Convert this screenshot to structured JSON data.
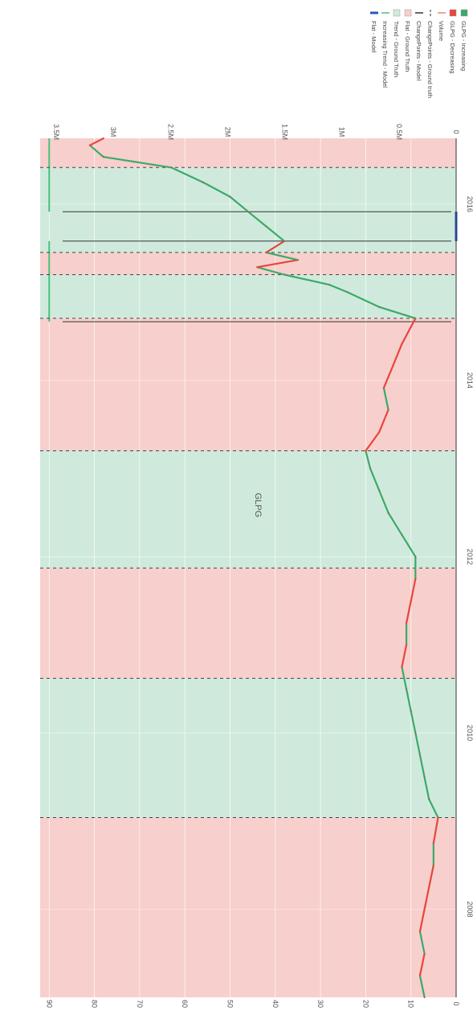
{
  "chart_data": {
    "type": "line",
    "title": "GLPG",
    "orientation": "rotated-90-clockwise",
    "x_axis": {
      "kind": "date",
      "ticks": [
        "2008",
        "2010",
        "2012",
        "2014",
        "2016"
      ],
      "range": [
        "2007-01-01",
        "2016-09-30"
      ]
    },
    "y_axis_left": {
      "ticks": [
        "0",
        "10",
        "20",
        "30",
        "40",
        "50",
        "60",
        "70",
        "80",
        "90"
      ],
      "range": [
        0,
        92
      ]
    },
    "y_axis_right": {
      "label": "Volume",
      "ticks": [
        "0",
        "0.5M",
        "1M",
        "1.5M",
        "2M",
        "2.5M",
        "3M",
        "3.5M"
      ],
      "range": [
        0,
        3500000
      ]
    },
    "grid": true,
    "legend_position": "top-right",
    "legend": [
      {
        "label": "GLPG - Increasing",
        "kind": "box",
        "color": "#3aaa6a"
      },
      {
        "label": "GLPG - Decreasing",
        "kind": "box",
        "color": "#e8453c"
      },
      {
        "label": "Volume",
        "kind": "line",
        "color": "#e88a70"
      },
      {
        "label": "ChangePoints - Ground truth",
        "kind": "dash",
        "color": "#333333"
      },
      {
        "label": "ChangePoints - Model",
        "kind": "line",
        "color": "#333333"
      },
      {
        "label": "Flat - Ground Truth",
        "kind": "box",
        "color": "#f7cfcc"
      },
      {
        "label": "Trend - Ground Truth",
        "kind": "box",
        "color": "#cfeadc"
      },
      {
        "label": "Increasing Trend - Model",
        "kind": "line",
        "color": "#4cc07c"
      },
      {
        "label": "Flat - Model",
        "kind": "line",
        "color": "#2a55c0"
      }
    ],
    "regions": [
      {
        "kind": "flat",
        "start": "2007-01-01",
        "end": "2009-01-15"
      },
      {
        "kind": "trend",
        "start": "2009-01-15",
        "end": "2010-08-15"
      },
      {
        "kind": "flat",
        "start": "2010-08-15",
        "end": "2011-11-15"
      },
      {
        "kind": "trend",
        "start": "2011-11-15",
        "end": "2013-03-15"
      },
      {
        "kind": "flat",
        "start": "2013-03-15",
        "end": "2014-09-15"
      },
      {
        "kind": "trend",
        "start": "2014-09-15",
        "end": "2015-03-15"
      },
      {
        "kind": "flat",
        "start": "2015-03-15",
        "end": "2015-06-15"
      },
      {
        "kind": "trend",
        "start": "2015-06-15",
        "end": "2016-06-01"
      },
      {
        "kind": "flat",
        "start": "2016-06-01",
        "end": "2016-09-30"
      }
    ],
    "changepoints_ground_truth": [
      "2009-01-15",
      "2010-08-15",
      "2011-11-15",
      "2013-03-15",
      "2014-09-15",
      "2015-03-15",
      "2015-06-15",
      "2016-06-01"
    ],
    "changepoints_model": [
      "2014-09-01",
      "2015-08-01",
      "2015-12-01"
    ],
    "model_segments": [
      {
        "kind": "increasing",
        "start": "2014-09-01",
        "end": "2015-08-01",
        "level": 90
      },
      {
        "kind": "flat",
        "start": "2015-08-01",
        "end": "2015-12-01",
        "level": 0
      },
      {
        "kind": "increasing",
        "start": "2015-12-01",
        "end": "2016-09-30",
        "level": 90
      }
    ],
    "series": [
      {
        "name": "GLPG",
        "x": [
          "2007-01-01",
          "2007-04-01",
          "2007-07-01",
          "2007-10-01",
          "2008-01-01",
          "2008-04-01",
          "2008-07-01",
          "2008-10-01",
          "2009-01-15",
          "2009-04-01",
          "2009-07-01",
          "2009-10-01",
          "2010-01-01",
          "2010-04-01",
          "2010-07-01",
          "2010-10-01",
          "2011-01-01",
          "2011-04-01",
          "2011-07-01",
          "2011-10-01",
          "2012-01-01",
          "2012-04-01",
          "2012-07-01",
          "2012-10-01",
          "2013-01-01",
          "2013-03-15",
          "2013-06-01",
          "2013-09-01",
          "2013-12-01",
          "2014-03-01",
          "2014-06-01",
          "2014-09-15",
          "2014-11-01",
          "2015-01-01",
          "2015-02-01",
          "2015-03-15",
          "2015-04-15",
          "2015-05-15",
          "2015-06-15",
          "2015-08-01",
          "2015-10-01",
          "2015-12-01",
          "2016-02-01",
          "2016-04-01",
          "2016-06-01",
          "2016-07-15",
          "2016-09-01",
          "2016-09-30"
        ],
        "values": [
          7,
          8,
          7,
          8,
          7,
          6,
          5,
          5,
          4,
          6,
          7,
          8,
          9,
          10,
          11,
          12,
          11,
          11,
          10,
          9,
          9,
          12,
          15,
          17,
          19,
          20,
          17,
          15,
          16,
          14,
          12,
          9,
          17,
          24,
          28,
          38,
          44,
          35,
          42,
          38,
          42,
          46,
          50,
          56,
          63,
          78,
          81,
          78
        ]
      }
    ]
  }
}
